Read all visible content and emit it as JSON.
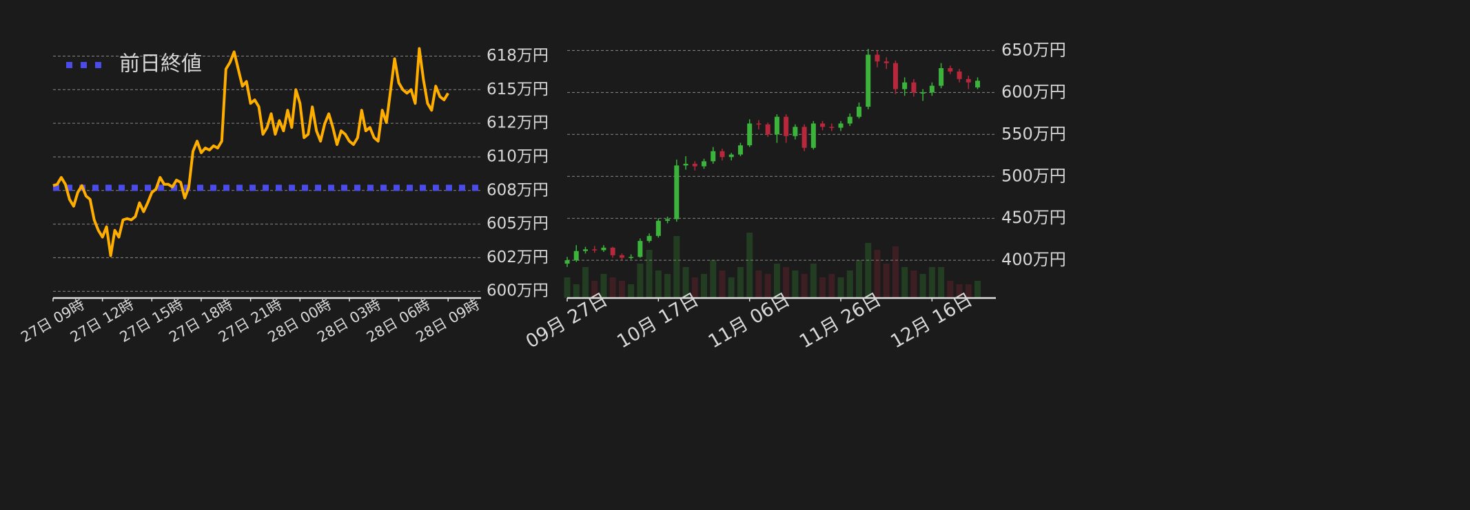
{
  "chart_data": [
    {
      "type": "line",
      "categories": [
        "27日 09時",
        null,
        null,
        null,
        null,
        null,
        null,
        null,
        null,
        null,
        null,
        null,
        "27日 12時",
        null,
        null,
        null,
        null,
        null,
        null,
        null,
        null,
        null,
        null,
        null,
        "27日 15時",
        null,
        null,
        null,
        null,
        null,
        null,
        null,
        null,
        null,
        null,
        null,
        "27日 18時",
        null,
        null,
        null,
        null,
        null,
        null,
        null,
        null,
        null,
        null,
        null,
        "27日 21時",
        null,
        null,
        null,
        null,
        null,
        null,
        null,
        null,
        null,
        null,
        null,
        "28日 00時",
        null,
        null,
        null,
        null,
        null,
        null,
        null,
        null,
        null,
        null,
        null,
        "28日 03時",
        null,
        null,
        null,
        null,
        null,
        null,
        null,
        null,
        null,
        null,
        null,
        "28日 06時",
        null,
        null,
        null,
        null,
        null,
        null,
        null,
        null,
        null,
        null,
        null,
        "28日 09時",
        null,
        null,
        null,
        null,
        null,
        null,
        null,
        null
      ],
      "values": [
        607.86,
        607.96,
        608.47,
        607.96,
        606.84,
        606.33,
        607.35,
        607.86,
        607.09,
        606.84,
        605.31,
        604.54,
        604.03,
        604.8,
        602.65,
        604.54,
        604.03,
        605.31,
        605.41,
        605.31,
        605.56,
        606.58,
        605.92,
        606.58,
        607.35,
        607.6,
        608.47,
        607.96,
        607.96,
        607.76,
        608.27,
        608.11,
        606.94,
        607.76,
        610.41,
        611.17,
        610.31,
        610.66,
        610.51,
        610.82,
        610.66,
        611.17,
        616.53,
        617.04,
        617.81,
        616.53,
        615.26,
        615.61,
        613.98,
        614.24,
        613.73,
        611.68,
        612.19,
        613.21,
        611.68,
        612.7,
        611.94,
        613.47,
        612.19,
        615.0,
        613.98,
        611.43,
        611.68,
        613.72,
        611.94,
        611.17,
        612.45,
        613.21,
        612.19,
        610.92,
        611.94,
        611.68,
        611.17,
        610.92,
        611.43,
        613.47,
        611.94,
        612.19,
        611.43,
        611.17,
        613.47,
        612.55,
        614.9,
        617.3,
        615.51,
        615.0,
        614.74,
        615.0,
        613.98,
        618.06,
        615.76,
        613.98,
        613.47,
        615.26,
        614.49,
        614.24,
        614.74,
        null,
        null,
        null,
        null,
        null,
        null,
        null,
        null
      ],
      "color": "#ffae00",
      "reference_line": {
        "name": "前日終値",
        "value": 607.7,
        "color": "#4b4bea"
      },
      "legend": "upper left",
      "ylim": [
        599.5,
        618.6
      ],
      "yticks": [
        {
          "value": 600,
          "label": "600万円"
        },
        {
          "value": 602.5,
          "label": "602万円"
        },
        {
          "value": 605,
          "label": "605万円"
        },
        {
          "value": 607.5,
          "label": "608万円"
        },
        {
          "value": 610,
          "label": "610万円"
        },
        {
          "value": 612.5,
          "label": "612万円"
        },
        {
          "value": 615,
          "label": "615万円"
        },
        {
          "value": 617.5,
          "label": "618万円"
        }
      ],
      "grid": true
    },
    {
      "type": "candlestick",
      "categories": [
        "09月 27日",
        null,
        null,
        null,
        null,
        null,
        null,
        null,
        null,
        null,
        "10月 17日",
        null,
        null,
        null,
        null,
        null,
        null,
        null,
        null,
        null,
        "11月 06日",
        null,
        null,
        null,
        null,
        null,
        null,
        null,
        null,
        null,
        "11月 26日",
        null,
        null,
        null,
        null,
        null,
        null,
        null,
        null,
        null,
        "12月 16日",
        null,
        null,
        null,
        null,
        null,
        null,
        null
      ],
      "open": [
        396,
        400,
        411,
        413,
        412,
        415,
        406,
        403,
        404,
        423,
        429,
        447,
        449,
        513,
        515,
        512,
        518,
        530,
        523,
        526,
        537,
        563,
        562,
        550,
        571,
        548,
        559,
        534,
        563,
        559,
        558,
        563,
        571,
        583,
        645,
        637,
        635,
        604,
        612,
        600,
        600,
        608,
        629,
        625,
        616,
        606,
        null,
        null
      ],
      "high": [
        404,
        418,
        416,
        417,
        418,
        416,
        408,
        407,
        426,
        432,
        450,
        452,
        520,
        524,
        518,
        521,
        535,
        533,
        528,
        540,
        568,
        567,
        564,
        574,
        574,
        562,
        562,
        566,
        566,
        563,
        566,
        575,
        588,
        652,
        650,
        642,
        638,
        618,
        616,
        604,
        612,
        635,
        632,
        628,
        620,
        618,
        null,
        null
      ],
      "low": [
        392,
        398,
        408,
        409,
        410,
        403,
        400,
        401,
        403,
        421,
        427,
        444,
        446,
        508,
        507,
        509,
        515,
        519,
        519,
        524,
        535,
        556,
        547,
        540,
        540,
        544,
        530,
        532,
        555,
        554,
        554,
        560,
        569,
        580,
        630,
        628,
        598,
        596,
        595,
        590,
        596,
        605,
        622,
        612,
        604,
        604,
        null,
        null
      ],
      "close": [
        400,
        411,
        413,
        412,
        415,
        406,
        403,
        404,
        423,
        429,
        447,
        449,
        513,
        515,
        512,
        518,
        530,
        523,
        526,
        537,
        563,
        562,
        550,
        571,
        548,
        559,
        534,
        563,
        559,
        558,
        563,
        571,
        583,
        645,
        637,
        635,
        604,
        612,
        600,
        600,
        608,
        629,
        625,
        616,
        612,
        614,
        null,
        null
      ],
      "volume": [
        30,
        20,
        45,
        25,
        35,
        30,
        25,
        20,
        50,
        70,
        40,
        35,
        90,
        45,
        30,
        35,
        55,
        40,
        30,
        45,
        95,
        40,
        35,
        50,
        45,
        40,
        35,
        50,
        30,
        35,
        30,
        40,
        55,
        80,
        70,
        50,
        75,
        45,
        40,
        35,
        45,
        45,
        25,
        20,
        20,
        25,
        null,
        null
      ],
      "up_color": "#3cb43c",
      "down_color": "#b8283c",
      "ylim": [
        355,
        661
      ],
      "yticks": [
        {
          "value": 400,
          "label": "400万円"
        },
        {
          "value": 450,
          "label": "450万円"
        },
        {
          "value": 500,
          "label": "500万円"
        },
        {
          "value": 550,
          "label": "550万円"
        },
        {
          "value": 600,
          "label": "600万円"
        },
        {
          "value": 650,
          "label": "650万円"
        }
      ],
      "vlim": [
        0,
        100
      ],
      "grid": true
    }
  ]
}
